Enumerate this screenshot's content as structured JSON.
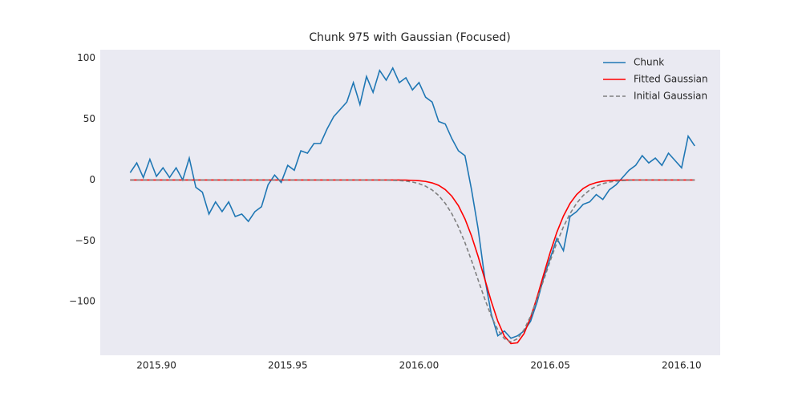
{
  "chart_data": {
    "type": "line",
    "title": "Chunk 975 with Gaussian (Focused)",
    "x": [
      2015.89,
      2015.8925,
      2015.895,
      2015.8975,
      2015.9,
      2015.9025,
      2015.905,
      2015.9075,
      2015.91,
      2015.9125,
      2015.915,
      2015.9175,
      2015.92,
      2015.9225,
      2015.925,
      2015.9275,
      2015.93,
      2015.9325,
      2015.935,
      2015.9375,
      2015.94,
      2015.9425,
      2015.945,
      2015.9475,
      2015.95,
      2015.9525,
      2015.955,
      2015.9575,
      2015.96,
      2015.9625,
      2015.965,
      2015.9675,
      2015.97,
      2015.9725,
      2015.975,
      2015.9775,
      2015.98,
      2015.9825,
      2015.985,
      2015.9875,
      2015.99,
      2015.9925,
      2015.995,
      2015.9975,
      2016.0,
      2016.0025,
      2016.005,
      2016.0075,
      2016.01,
      2016.0125,
      2016.015,
      2016.0175,
      2016.02,
      2016.0225,
      2016.025,
      2016.0275,
      2016.03,
      2016.0325,
      2016.035,
      2016.0375,
      2016.04,
      2016.0425,
      2016.045,
      2016.0475,
      2016.05,
      2016.0525,
      2016.055,
      2016.0575,
      2016.06,
      2016.0625,
      2016.065,
      2016.0675,
      2016.07,
      2016.0725,
      2016.075,
      2016.0775,
      2016.08,
      2016.0825,
      2016.085,
      2016.0875,
      2016.09,
      2016.0925,
      2016.095,
      2016.0975,
      2016.1,
      2016.1025,
      2016.105
    ],
    "series": [
      {
        "name": "Chunk",
        "color": "#1f77b4",
        "linestyle": "solid",
        "values": [
          6,
          14,
          2,
          17,
          3,
          10,
          2,
          10,
          0,
          18,
          -6,
          -10,
          -28,
          -18,
          -26,
          -18,
          -30,
          -28,
          -34,
          -26,
          -22,
          -4,
          4,
          -2,
          12,
          8,
          24,
          22,
          30,
          30,
          42,
          52,
          58,
          64,
          80,
          62,
          85,
          72,
          90,
          82,
          92,
          80,
          84,
          74,
          80,
          68,
          64,
          48,
          46,
          34,
          24,
          20,
          -8,
          -40,
          -80,
          -110,
          -128,
          -124,
          -130,
          -128,
          -124,
          -116,
          -100,
          -80,
          -64,
          -48,
          -58,
          -30,
          -26,
          -20,
          -18,
          -12,
          -16,
          -8,
          -4,
          2,
          8,
          12,
          20,
          14,
          18,
          12,
          22,
          16,
          10,
          36,
          28
        ]
      },
      {
        "name": "Fitted Gaussian",
        "color": "#ff0000",
        "linestyle": "solid",
        "values": [
          0,
          0,
          0,
          0,
          0,
          0,
          0,
          0,
          0,
          0,
          0,
          0,
          0,
          0,
          0,
          0,
          0,
          0,
          0,
          0,
          0,
          0,
          0,
          0,
          0,
          0,
          0,
          0,
          0,
          0,
          0,
          0,
          0,
          0,
          0,
          0,
          0,
          0,
          0,
          0,
          0,
          0,
          -0.1,
          -0.3,
          -0.6,
          -1.2,
          -2.4,
          -4.4,
          -7.9,
          -13.3,
          -21.1,
          -32,
          -46,
          -62.7,
          -81.1,
          -99.6,
          -116,
          -128.2,
          -134.4,
          -133.7,
          -126.2,
          -113,
          -96,
          -77.4,
          -59.2,
          -42.9,
          -29.6,
          -19.3,
          -12,
          -7,
          -3.9,
          -2.1,
          -1,
          -0.5,
          -0.2,
          -0.1,
          0,
          0,
          0,
          0,
          0,
          0,
          0,
          0,
          0,
          0,
          0
        ]
      },
      {
        "name": "Initial Gaussian",
        "color": "#808080",
        "linestyle": "dashed",
        "values": [
          0,
          0,
          0,
          0,
          0,
          0,
          0,
          0,
          0,
          0,
          0,
          0,
          0,
          0,
          0,
          0,
          0,
          0,
          0,
          0,
          0,
          0,
          0,
          0,
          0,
          0,
          0,
          0,
          0,
          0,
          0,
          0,
          0,
          0,
          0,
          0,
          0,
          0,
          -0.1,
          -0.1,
          -0.3,
          -0.5,
          -0.9,
          -1.7,
          -3,
          -5.1,
          -8.2,
          -12.8,
          -19.2,
          -27.7,
          -38.5,
          -51.5,
          -66.2,
          -82,
          -97.5,
          -111.8,
          -123,
          -130.4,
          -133,
          -130.4,
          -123,
          -111.8,
          -97.5,
          -82,
          -66.2,
          -51.5,
          -38.5,
          -27.7,
          -19.2,
          -12.8,
          -8.2,
          -5.1,
          -3,
          -1.7,
          -0.9,
          -0.5,
          -0.3,
          -0.1,
          0,
          0,
          0,
          0,
          0,
          0,
          0,
          0,
          0
        ]
      }
    ],
    "xlim": [
      2015.8786,
      2016.1147
    ],
    "ylim": [
      -144,
      107
    ],
    "xticks": [
      {
        "value": 2015.9,
        "label": "2015.90"
      },
      {
        "value": 2015.95,
        "label": "2015.95"
      },
      {
        "value": 2016,
        "label": "2016.00"
      },
      {
        "value": 2016.05,
        "label": "2016.05"
      },
      {
        "value": 2016.1,
        "label": "2016.10"
      }
    ],
    "yticks": [
      {
        "value": -100,
        "label": "−100"
      },
      {
        "value": -50,
        "label": "−50"
      },
      0,
      50,
      100
    ],
    "grid": false,
    "legend": "upper right",
    "background": "#eaeaf2"
  }
}
